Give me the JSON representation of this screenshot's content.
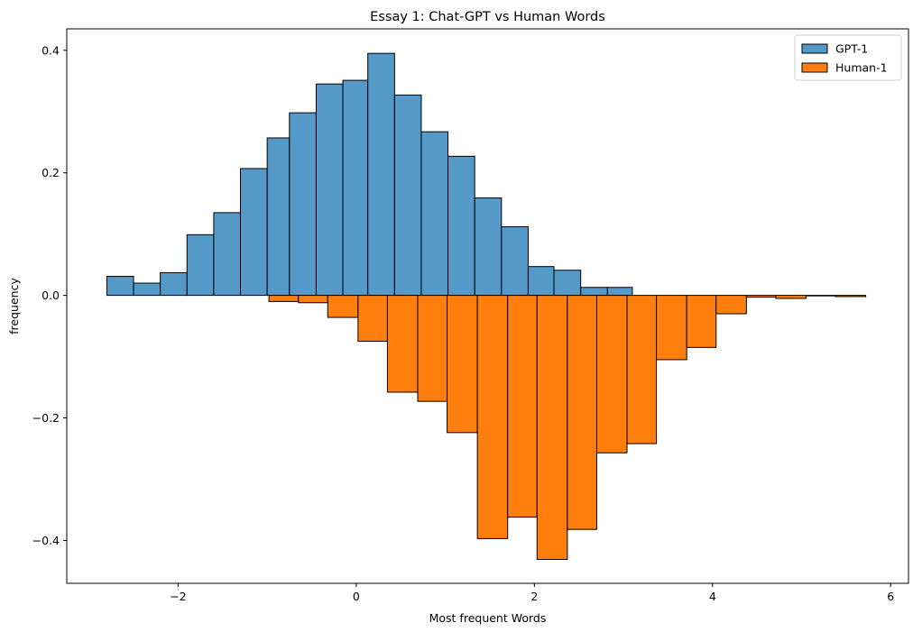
{
  "chart_data": {
    "type": "bar",
    "title": "Essay 1: Chat-GPT vs Human Words",
    "xlabel": "Most frequent Words",
    "ylabel": "frequency",
    "xlim": [
      -3.25,
      6.2
    ],
    "ylim": [
      -0.47,
      0.435
    ],
    "xticks": [
      -2,
      0,
      2,
      4,
      6
    ],
    "xtick_labels": [
      "−2",
      "0",
      "2",
      "4",
      "6"
    ],
    "yticks": [
      -0.4,
      -0.2,
      0.0,
      0.2,
      0.4
    ],
    "ytick_labels": [
      "−0.4",
      "−0.2",
      "0.0",
      "0.2",
      "0.4"
    ],
    "grid": false,
    "legend_position": "top-right",
    "colors": {
      "GPT-1": "#5499c7",
      "Human-1": "#ff7f0e",
      "edge": "#000000"
    },
    "series": [
      {
        "name": "GPT-1",
        "bins": [
          {
            "x0": -2.8,
            "x1": -2.5,
            "value": 0.031
          },
          {
            "x0": -2.5,
            "x1": -2.2,
            "value": 0.02
          },
          {
            "x0": -2.2,
            "x1": -1.9,
            "value": 0.037
          },
          {
            "x0": -1.9,
            "x1": -1.6,
            "value": 0.099
          },
          {
            "x0": -1.6,
            "x1": -1.3,
            "value": 0.135
          },
          {
            "x0": -1.3,
            "x1": -1.0,
            "value": 0.207
          },
          {
            "x0": -1.0,
            "x1": -0.75,
            "value": 0.257
          },
          {
            "x0": -0.75,
            "x1": -0.45,
            "value": 0.298
          },
          {
            "x0": -0.45,
            "x1": -0.15,
            "value": 0.345
          },
          {
            "x0": -0.15,
            "x1": 0.13,
            "value": 0.351
          },
          {
            "x0": 0.13,
            "x1": 0.43,
            "value": 0.395
          },
          {
            "x0": 0.43,
            "x1": 0.73,
            "value": 0.327
          },
          {
            "x0": 0.73,
            "x1": 1.03,
            "value": 0.267
          },
          {
            "x0": 1.03,
            "x1": 1.33,
            "value": 0.227
          },
          {
            "x0": 1.33,
            "x1": 1.63,
            "value": 0.159
          },
          {
            "x0": 1.63,
            "x1": 1.93,
            "value": 0.112
          },
          {
            "x0": 1.93,
            "x1": 2.22,
            "value": 0.047
          },
          {
            "x0": 2.22,
            "x1": 2.52,
            "value": 0.041
          },
          {
            "x0": 2.52,
            "x1": 2.82,
            "value": 0.013
          },
          {
            "x0": 2.82,
            "x1": 3.1,
            "value": 0.013
          }
        ]
      },
      {
        "name": "Human-1",
        "bins": [
          {
            "x0": -0.98,
            "x1": -0.65,
            "value": -0.01
          },
          {
            "x0": -0.65,
            "x1": -0.32,
            "value": -0.012
          },
          {
            "x0": -0.32,
            "x1": 0.02,
            "value": -0.036
          },
          {
            "x0": 0.02,
            "x1": 0.35,
            "value": -0.075
          },
          {
            "x0": 0.35,
            "x1": 0.69,
            "value": -0.158
          },
          {
            "x0": 0.69,
            "x1": 1.02,
            "value": -0.173
          },
          {
            "x0": 1.02,
            "x1": 1.36,
            "value": -0.224
          },
          {
            "x0": 1.36,
            "x1": 1.7,
            "value": -0.397
          },
          {
            "x0": 1.7,
            "x1": 2.03,
            "value": -0.362
          },
          {
            "x0": 2.03,
            "x1": 2.37,
            "value": -0.431
          },
          {
            "x0": 2.37,
            "x1": 2.7,
            "value": -0.382
          },
          {
            "x0": 2.7,
            "x1": 3.04,
            "value": -0.257
          },
          {
            "x0": 3.04,
            "x1": 3.37,
            "value": -0.242
          },
          {
            "x0": 3.37,
            "x1": 3.71,
            "value": -0.105
          },
          {
            "x0": 3.71,
            "x1": 4.04,
            "value": -0.085
          },
          {
            "x0": 4.04,
            "x1": 4.38,
            "value": -0.03
          },
          {
            "x0": 4.38,
            "x1": 4.71,
            "value": -0.003
          },
          {
            "x0": 4.71,
            "x1": 5.05,
            "value": -0.005
          },
          {
            "x0": 5.05,
            "x1": 5.38,
            "value": 0.0
          },
          {
            "x0": 5.38,
            "x1": 5.72,
            "value": -0.002
          }
        ]
      }
    ]
  }
}
